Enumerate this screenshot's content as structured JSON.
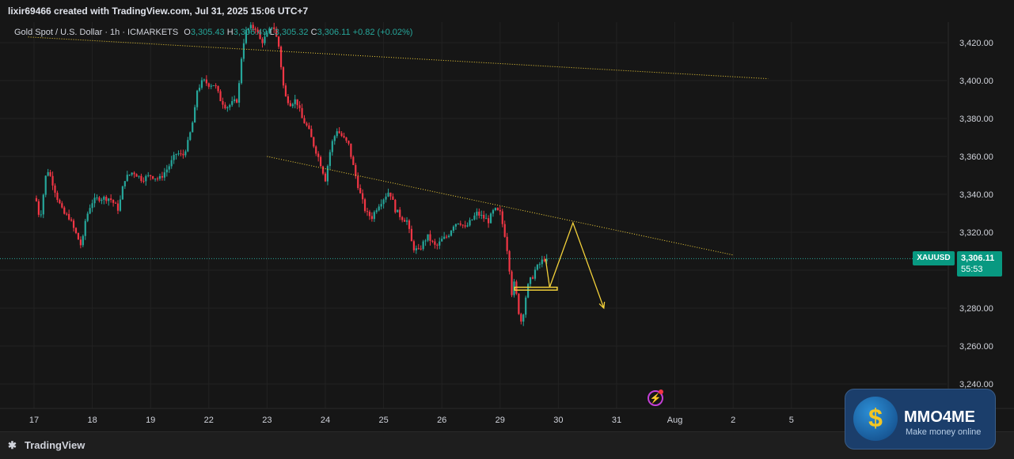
{
  "header": {
    "author_line": "lixir69466 created with TradingView.com, Jul 31, 2025 15:06 UTC+7"
  },
  "legend": {
    "symbol": "Gold Spot / U.S. Dollar · 1h · ICMARKETS",
    "open_label": "O",
    "open": "3,305.43",
    "high_label": "H",
    "high": "3,306.49",
    "low_label": "L",
    "low": "3,305.32",
    "close_label": "C",
    "close": "3,306.11",
    "change": "+0.82 (+0.02%)"
  },
  "price_badge": {
    "symbol": "XAUUSD",
    "price": "3,306.11",
    "countdown": "55:53"
  },
  "footer": {
    "logo_text": "TradingView"
  },
  "brand": {
    "name": "MMO4ME",
    "tagline": "Make money online"
  },
  "colors": {
    "background": "#161616",
    "up": "#26a69a",
    "down": "#f23645",
    "drawing": "#f3d13a",
    "axis_text": "#d1d4dc",
    "grid": "#222222"
  },
  "icons": {
    "alert": "lightning-bolt-icon",
    "logo": "tradingview-logo-icon",
    "brand": "dollar-coin-icon"
  },
  "chart_data": {
    "type": "candlestick",
    "title": "Gold Spot / U.S. Dollar · 1h · ICMARKETS",
    "timeframe": "1h",
    "ylim": [
      3230,
      3430
    ],
    "y_ticks": [
      "3,420.00",
      "3,400.00",
      "3,380.00",
      "3,360.00",
      "3,340.00",
      "3,320.00",
      "3,300.00",
      "3,280.00",
      "3,260.00",
      "3,240.00"
    ],
    "y_tick_values": [
      3420,
      3400,
      3380,
      3360,
      3340,
      3320,
      3300,
      3280,
      3260,
      3240
    ],
    "x_ticks": [
      "17",
      "18",
      "19",
      "22",
      "23",
      "24",
      "25",
      "26",
      "29",
      "30",
      "31",
      "Aug",
      "2",
      "5"
    ],
    "x_tick_indices": [
      0,
      1,
      2,
      3,
      4,
      5,
      6,
      7,
      8,
      9,
      10,
      11,
      12,
      13
    ],
    "last_close_line": 3306.11,
    "path": [
      [
        0.0,
        3338
      ],
      [
        0.05,
        3336
      ],
      [
        0.1,
        3326
      ],
      [
        0.16,
        3340
      ],
      [
        0.22,
        3354
      ],
      [
        0.3,
        3348
      ],
      [
        0.4,
        3338
      ],
      [
        0.5,
        3330
      ],
      [
        0.6,
        3328
      ],
      [
        0.68,
        3322
      ],
      [
        0.82,
        3312
      ],
      [
        0.88,
        3326
      ],
      [
        0.95,
        3333
      ],
      [
        1.0,
        3336
      ],
      [
        1.1,
        3338
      ],
      [
        1.3,
        3338
      ],
      [
        1.45,
        3332
      ],
      [
        1.55,
        3348
      ],
      [
        1.7,
        3352
      ],
      [
        1.85,
        3348
      ],
      [
        2.0,
        3350
      ],
      [
        2.15,
        3348
      ],
      [
        2.3,
        3354
      ],
      [
        2.45,
        3362
      ],
      [
        2.55,
        3360
      ],
      [
        2.65,
        3368
      ],
      [
        2.75,
        3382
      ],
      [
        2.8,
        3395
      ],
      [
        2.9,
        3400
      ],
      [
        3.0,
        3398
      ],
      [
        3.1,
        3398
      ],
      [
        3.2,
        3390
      ],
      [
        3.3,
        3386
      ],
      [
        3.4,
        3388
      ],
      [
        3.5,
        3390
      ],
      [
        3.55,
        3410
      ],
      [
        3.62,
        3425
      ],
      [
        3.7,
        3428
      ],
      [
        3.8,
        3428
      ],
      [
        3.9,
        3420
      ],
      [
        4.0,
        3424
      ],
      [
        4.1,
        3430
      ],
      [
        4.2,
        3418
      ],
      [
        4.3,
        3392
      ],
      [
        4.4,
        3388
      ],
      [
        4.5,
        3390
      ],
      [
        4.6,
        3380
      ],
      [
        4.7,
        3375
      ],
      [
        4.8,
        3366
      ],
      [
        4.9,
        3358
      ],
      [
        5.0,
        3348
      ],
      [
        5.1,
        3366
      ],
      [
        5.2,
        3374
      ],
      [
        5.3,
        3370
      ],
      [
        5.4,
        3366
      ],
      [
        5.5,
        3352
      ],
      [
        5.6,
        3340
      ],
      [
        5.7,
        3330
      ],
      [
        5.8,
        3328
      ],
      [
        5.9,
        3334
      ],
      [
        6.0,
        3338
      ],
      [
        6.1,
        3342
      ],
      [
        6.2,
        3332
      ],
      [
        6.3,
        3328
      ],
      [
        6.4,
        3326
      ],
      [
        6.5,
        3312
      ],
      [
        6.6,
        3310
      ],
      [
        6.75,
        3318
      ],
      [
        6.9,
        3312
      ],
      [
        7.0,
        3316
      ],
      [
        7.1,
        3318
      ],
      [
        7.2,
        3324
      ],
      [
        7.3,
        3326
      ],
      [
        7.4,
        3322
      ],
      [
        7.5,
        3326
      ],
      [
        7.6,
        3330
      ],
      [
        7.7,
        3328
      ],
      [
        7.8,
        3326
      ],
      [
        7.9,
        3332
      ],
      [
        8.0,
        3330
      ],
      [
        8.1,
        3316
      ],
      [
        8.15,
        3304
      ],
      [
        8.2,
        3288
      ],
      [
        8.25,
        3294
      ],
      [
        8.3,
        3282
      ],
      [
        8.35,
        3272
      ],
      [
        8.4,
        3278
      ],
      [
        8.45,
        3288
      ],
      [
        8.5,
        3294
      ],
      [
        8.55,
        3296
      ],
      [
        8.6,
        3300
      ],
      [
        8.65,
        3302
      ],
      [
        8.7,
        3304
      ],
      [
        8.75,
        3306
      ],
      [
        8.8,
        3306.11
      ]
    ],
    "drawings": {
      "upper_trendline": {
        "from": [
          -0.1,
          3423
        ],
        "to": [
          12.6,
          3401
        ]
      },
      "lower_trendline": {
        "from": [
          4.0,
          3360
        ],
        "to": [
          12.0,
          3308
        ]
      },
      "support_zone": {
        "x_from": 8.25,
        "x_to": 8.98,
        "y_top": 3291,
        "y_bottom": 3289.5
      },
      "projection": [
        [
          8.78,
          3306
        ],
        [
          8.85,
          3291
        ],
        [
          9.25,
          3325
        ],
        [
          9.78,
          3280
        ]
      ]
    }
  }
}
